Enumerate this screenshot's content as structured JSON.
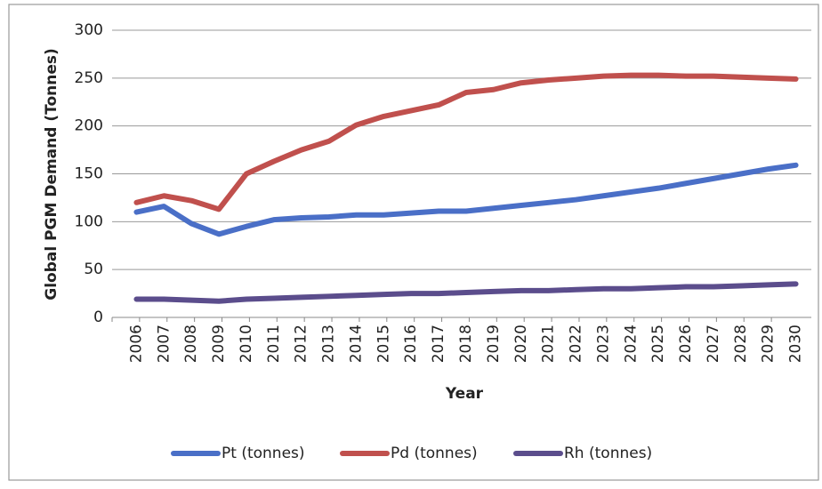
{
  "chart_data": {
    "type": "line",
    "y_label": "Global PGM Demand (Tonnes)",
    "x_label": "Year",
    "categories": [
      "2006",
      "2007",
      "2008",
      "2009",
      "2010",
      "2011",
      "2012",
      "2013",
      "2014",
      "2015",
      "2016",
      "2017",
      "2018",
      "2019",
      "2020",
      "2021",
      "2022",
      "2023",
      "2024",
      "2025",
      "2026",
      "2027",
      "2028",
      "2029",
      "2030"
    ],
    "series": [
      {
        "name": "Pt (tonnes)",
        "color": "#4a6fc7",
        "values": [
          110,
          116,
          98,
          87,
          95,
          102,
          104,
          105,
          107,
          107,
          109,
          111,
          111,
          114,
          117,
          120,
          123,
          127,
          131,
          135,
          140,
          145,
          150,
          155,
          159
        ]
      },
      {
        "name": "Pd (tonnes)",
        "color": "#c0504d",
        "values": [
          120,
          127,
          122,
          113,
          150,
          163,
          175,
          184,
          201,
          210,
          216,
          222,
          235,
          238,
          245,
          248,
          250,
          252,
          253,
          253,
          252,
          252,
          251,
          250,
          249
        ]
      },
      {
        "name": "Rh (tonnes)",
        "color": "#5b4d8c",
        "values": [
          19,
          19,
          18,
          17,
          19,
          20,
          21,
          22,
          23,
          24,
          25,
          25,
          26,
          27,
          28,
          28,
          29,
          30,
          30,
          31,
          32,
          32,
          33,
          34,
          35
        ]
      }
    ],
    "ylim": [
      0,
      300
    ],
    "yticks": [
      0,
      50,
      100,
      150,
      200,
      250,
      300
    ],
    "grid": true,
    "legend": "bottom"
  }
}
